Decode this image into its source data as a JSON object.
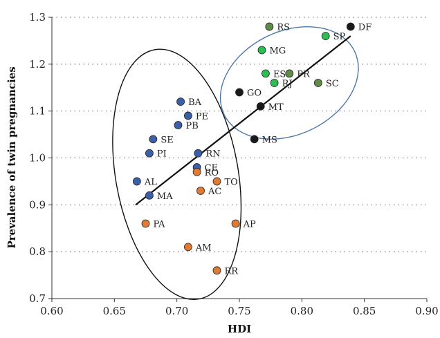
{
  "chart_data": {
    "type": "scatter",
    "xlabel": "HDI",
    "ylabel": "Prevalence of twin pregnancies",
    "xlim": [
      0.6,
      0.9
    ],
    "ylim": [
      0.7,
      1.3
    ],
    "xticks": [
      "0.60",
      "0.65",
      "0.70",
      "0.75",
      "0.80",
      "0.85",
      "0.90"
    ],
    "yticks": [
      "0.7",
      "0.8",
      "0.9",
      "1.0",
      "1.1",
      "1.2",
      "1.3"
    ],
    "grid": "horizontal-dotted",
    "colors": {
      "blue": "#3b5fa8",
      "orange": "#e07a35",
      "green": "#2ebd52",
      "olive": "#5f8a48",
      "black": "#1a1a1a",
      "left_ellipse": "#111111",
      "right_ellipse": "#4a78a8"
    },
    "points": [
      {
        "label": "DF",
        "x": 0.839,
        "y": 1.28,
        "color": "black"
      },
      {
        "label": "RS",
        "x": 0.774,
        "y": 1.28,
        "color": "olive"
      },
      {
        "label": "SP",
        "x": 0.819,
        "y": 1.26,
        "color": "green"
      },
      {
        "label": "MG",
        "x": 0.768,
        "y": 1.23,
        "color": "green"
      },
      {
        "label": "ES",
        "x": 0.771,
        "y": 1.18,
        "color": "green"
      },
      {
        "label": "PR",
        "x": 0.79,
        "y": 1.18,
        "color": "olive"
      },
      {
        "label": "RJ",
        "x": 0.778,
        "y": 1.16,
        "color": "green"
      },
      {
        "label": "SC",
        "x": 0.813,
        "y": 1.16,
        "color": "olive"
      },
      {
        "label": "GO",
        "x": 0.75,
        "y": 1.14,
        "color": "black"
      },
      {
        "label": "MT",
        "x": 0.767,
        "y": 1.11,
        "color": "black"
      },
      {
        "label": "MS",
        "x": 0.762,
        "y": 1.04,
        "color": "black"
      },
      {
        "label": "BA",
        "x": 0.703,
        "y": 1.12,
        "color": "blue"
      },
      {
        "label": "PE",
        "x": 0.709,
        "y": 1.09,
        "color": "blue"
      },
      {
        "label": "PB",
        "x": 0.701,
        "y": 1.07,
        "color": "blue"
      },
      {
        "label": "SE",
        "x": 0.681,
        "y": 1.04,
        "color": "blue"
      },
      {
        "label": "PI",
        "x": 0.678,
        "y": 1.01,
        "color": "blue"
      },
      {
        "label": "RN",
        "x": 0.717,
        "y": 1.01,
        "color": "blue"
      },
      {
        "label": "CE",
        "x": 0.716,
        "y": 0.98,
        "color": "blue"
      },
      {
        "label": "RO",
        "x": 0.716,
        "y": 0.97,
        "color": "orange"
      },
      {
        "label": "AL",
        "x": 0.668,
        "y": 0.95,
        "color": "blue"
      },
      {
        "label": "TO",
        "x": 0.732,
        "y": 0.95,
        "color": "orange"
      },
      {
        "label": "AC",
        "x": 0.719,
        "y": 0.93,
        "color": "orange"
      },
      {
        "label": "MA",
        "x": 0.678,
        "y": 0.92,
        "color": "blue"
      },
      {
        "label": "PA",
        "x": 0.675,
        "y": 0.86,
        "color": "orange"
      },
      {
        "label": "AP",
        "x": 0.747,
        "y": 0.86,
        "color": "orange"
      },
      {
        "label": "AM",
        "x": 0.709,
        "y": 0.81,
        "color": "orange"
      },
      {
        "label": "RR",
        "x": 0.732,
        "y": 0.76,
        "color": "orange"
      }
    ],
    "trendline": {
      "x": [
        0.667,
        0.839
      ],
      "y": [
        0.9,
        1.26
      ]
    },
    "ellipses": [
      {
        "name": "left-cluster",
        "cx": 0.7,
        "cy": 0.965,
        "rx": 0.049,
        "ry": 0.27,
        "rotate": -10,
        "color": "left_ellipse"
      },
      {
        "name": "right-cluster",
        "cx": 0.79,
        "cy": 1.16,
        "rx": 0.058,
        "ry": 0.11,
        "rotate": -26,
        "color": "right_ellipse"
      }
    ]
  }
}
